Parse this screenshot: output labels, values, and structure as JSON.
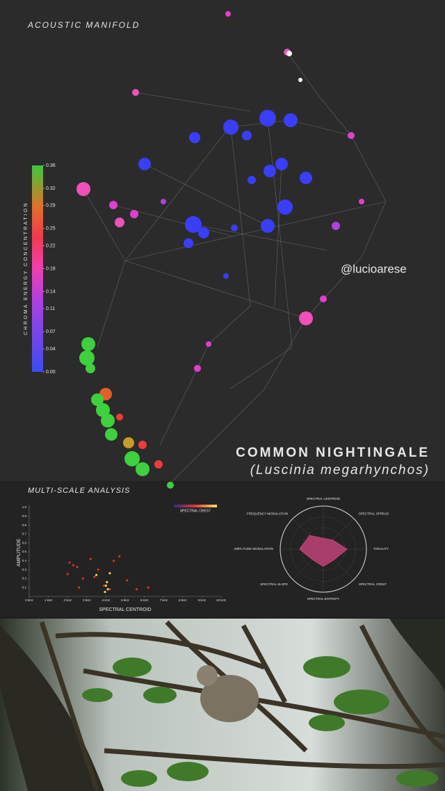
{
  "manifold": {
    "title": "ACOUSTIC MANIFOLD",
    "colorbar": {
      "label": "CHROMA ENERGY CONCENTRATION",
      "lim": [
        0,
        0.36
      ],
      "ticks": [
        0.36,
        0.32,
        0.29,
        0.25,
        0.22,
        0.18,
        0.14,
        0.11,
        0.07,
        0.04,
        {
          "value": 0,
          "label": "0.00"
        }
      ]
    }
  },
  "watermark": "@lucioarese",
  "species": {
    "common": "COMMON NIGHTINGALE",
    "latin": "(Luscinia megarhynchos)"
  },
  "analysis_title": "MULTI-SCALE ANALYSIS",
  "chart_data": [
    {
      "type": "scatter",
      "xlabel": "SPECTRAL CENTROID",
      "ylabel": "AMPLITUDE",
      "colorbar_label": "SPECTRAL CREST",
      "xlim": [
        0,
        10
      ],
      "ylim": [
        0,
        1
      ],
      "xticks": [
        {
          "value": 0,
          "label": "0 kHz"
        },
        {
          "value": 1,
          "label": "1 kHz"
        },
        {
          "value": 2,
          "label": "2 kHz"
        },
        {
          "value": 3,
          "label": "3 kHz"
        },
        {
          "value": 4,
          "label": "4 kHz"
        },
        {
          "value": 5,
          "label": "5 kHz"
        },
        {
          "value": 6,
          "label": "6 kHz"
        },
        {
          "value": 7,
          "label": "7 kHz"
        },
        {
          "value": 8,
          "label": "8 kHz"
        },
        {
          "value": 9,
          "label": "9 kHz"
        },
        {
          "value": 10,
          "label": "10 kHz"
        }
      ],
      "yticks": [
        0.1,
        0.2,
        0.3,
        0.4,
        0.5,
        0.6,
        0.7,
        0.8,
        0.9,
        {
          "value": 1,
          "label": "1.0"
        }
      ],
      "series": [
        {
          "color": "#d8322a",
          "x": [
            2.1,
            2.3,
            2.5,
            2.0,
            3.4,
            3.6,
            4.4,
            4.7,
            5.1,
            2.8,
            3.9,
            4.2,
            6.2,
            2.6,
            3.2,
            5.6
          ],
          "values": [
            0.38,
            0.35,
            0.33,
            0.25,
            0.22,
            0.3,
            0.4,
            0.45,
            0.18,
            0.2,
            0.12,
            0.08,
            0.1,
            0.1,
            0.42,
            0.08
          ]
        },
        {
          "color": "#f2d44a",
          "x": [
            4.0,
            4.1,
            4.05,
            3.95,
            4.2,
            3.5
          ],
          "values": [
            0.12,
            0.08,
            0.16,
            0.05,
            0.26,
            0.24
          ]
        }
      ]
    },
    {
      "type": "radar",
      "rlim": [
        0,
        1
      ],
      "color": "#c8447a",
      "categories": [
        "SPECTRAL CENTROID",
        "SPECTRAL SPREAD",
        "TONALITY",
        "SPECTRAL CREST",
        "SPECTRAL ENTROPY",
        "SPECTRAL SLOPE",
        "AMPLITUDE MODULATION",
        "FREQUENCY MODULATION"
      ],
      "values": [
        0.25,
        0.3,
        0.55,
        0.35,
        0.4,
        0.35,
        0.55,
        0.45
      ]
    }
  ]
}
